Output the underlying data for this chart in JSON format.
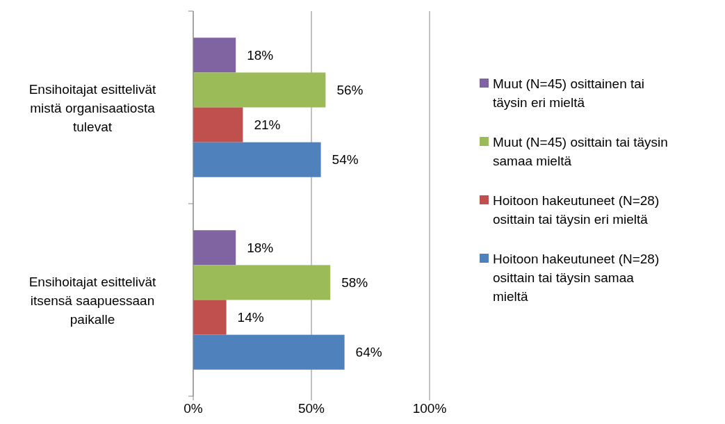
{
  "chart_data": {
    "type": "bar",
    "orientation": "horizontal",
    "categories": [
      "Ensihoitajat esittelivät mistä organisaatiosta tulevat",
      "Ensihoitajat esittelivät itsensä saapuessaan paikalle"
    ],
    "series": [
      {
        "name": "Muut (N=45) osittainen tai täysin eri mieltä",
        "color": "#8064a2",
        "values": [
          18,
          18
        ],
        "value_labels": [
          "18%",
          "18%"
        ]
      },
      {
        "name": "Muut (N=45) osittain tai täysin samaa mieltä",
        "color": "#9bbb59",
        "values": [
          56,
          58
        ],
        "value_labels": [
          "56%",
          "58%"
        ]
      },
      {
        "name": "Hoitoon hakeutuneet (N=28) osittain tai täysin eri mieltä",
        "color": "#c0504d",
        "values": [
          21,
          14
        ],
        "value_labels": [
          "21%",
          "14%"
        ]
      },
      {
        "name": "Hoitoon hakeutuneet (N=28) osittain tai täysin samaa mieltä",
        "color": "#4f81bd",
        "values": [
          54,
          64
        ],
        "value_labels": [
          "54%",
          "64%"
        ]
      }
    ],
    "xlim": [
      0,
      100
    ],
    "xticks": [
      {
        "value": 0,
        "label": "0%"
      },
      {
        "value": 50,
        "label": "50%"
      },
      {
        "value": 100,
        "label": "100%"
      }
    ],
    "grid": "x",
    "legend": "right"
  }
}
